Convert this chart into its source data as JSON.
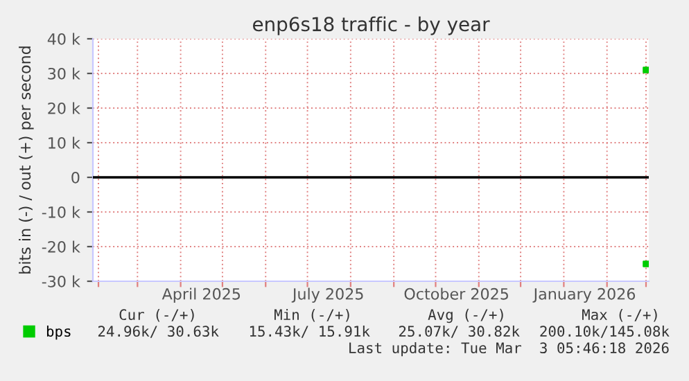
{
  "chart_data": {
    "type": "scatter",
    "title": "enp6s18 traffic - by year",
    "ylabel": "bits in (-) / out (+) per second",
    "x": [
      "2026-03-01"
    ],
    "series": [
      {
        "name": "bps",
        "color": "#00cc00",
        "values": [
          31000
        ]
      },
      {
        "color": "#00cc00",
        "values": [
          -25000
        ]
      }
    ],
    "xlim": [
      "2025-01-28",
      "2026-03-03"
    ],
    "xticks": [
      {
        "value": "2025-02-01",
        "label": null
      },
      {
        "value": "2025-03-01",
        "label": null
      },
      {
        "value": "2025-04-01",
        "label": null
      },
      {
        "value": "2025-04-16",
        "label": "April 2025"
      },
      {
        "value": "2025-05-01",
        "label": null
      },
      {
        "value": "2025-06-01",
        "label": null
      },
      {
        "value": "2025-07-01",
        "label": null
      },
      {
        "value": "2025-07-16",
        "label": "July 2025"
      },
      {
        "value": "2025-08-01",
        "label": null
      },
      {
        "value": "2025-09-01",
        "label": null
      },
      {
        "value": "2025-10-01",
        "label": null
      },
      {
        "value": "2025-10-16",
        "label": "October 2025"
      },
      {
        "value": "2025-11-01",
        "label": null
      },
      {
        "value": "2025-12-01",
        "label": null
      },
      {
        "value": "2026-01-01",
        "label": null
      },
      {
        "value": "2026-01-16",
        "label": "January 2026"
      },
      {
        "value": "2026-02-01",
        "label": null
      },
      {
        "value": "2026-03-01",
        "label": null
      }
    ],
    "ylim": [
      -30000,
      40000
    ],
    "yticks": [
      {
        "value": -30000,
        "label": "-30 k"
      },
      {
        "value": -20000,
        "label": "-20 k"
      },
      {
        "value": -10000,
        "label": "-10 k"
      },
      0,
      {
        "value": 10000,
        "label": "10 k"
      },
      {
        "value": 20000,
        "label": "20 k"
      },
      {
        "value": 30000,
        "label": "30 k"
      },
      {
        "value": 40000,
        "label": "40 k"
      }
    ],
    "ref_lines": [
      {
        "axis": "y",
        "value": 0,
        "color": "#000000"
      }
    ],
    "grid": true,
    "legend": "bottom",
    "marker": "square",
    "annotations": [
      "Cur (-/+)",
      "Min (-/+)",
      "Avg (-/+)",
      "Max (-/+)",
      "24.96k/ 30.63k",
      "15.43k/ 15.91k",
      "25.07k/ 30.82k",
      "200.10k/145.08k",
      "Last update: Tue Mar  3 05:46:18 2026"
    ]
  }
}
